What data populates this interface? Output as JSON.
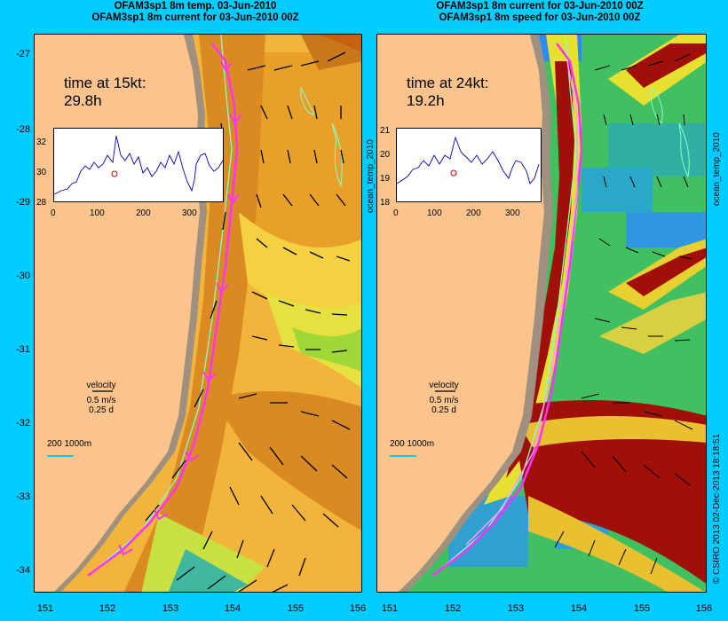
{
  "titles": {
    "left_line1": "OFAM3sp1 8m temp. 03-Jun-2010",
    "left_line2": "OFAM3sp1 8m current for 03-Jun-2010 00Z",
    "right_line1": "OFAM3sp1 8m current for 03-Jun-2010 00Z",
    "right_line2": "OFAM3sp1 8m speed for 03-Jun-2010 00Z"
  },
  "y_axis": {
    "ticks": [
      "-27",
      "-28",
      "-29",
      "-30",
      "-31",
      "-32",
      "-33",
      "-34"
    ]
  },
  "x_axis": {
    "ticks": [
      "151",
      "152",
      "153",
      "154",
      "155",
      "156"
    ]
  },
  "left_panel": {
    "time_label": "time at 15kt:",
    "time_value": "29.8h",
    "inset_y_ticks": [
      "32",
      "30",
      "28"
    ],
    "inset_x_ticks": [
      "0",
      "100",
      "200",
      "300"
    ],
    "legend_title": "velocity",
    "legend_speed": "0.5 m/s",
    "legend_time": "0.25 d",
    "scale_label": "200  1000m"
  },
  "right_panel": {
    "time_label": "time at 24kt:",
    "time_value": "19.2h",
    "inset_y_ticks": [
      "21",
      "20",
      "19",
      "18"
    ],
    "inset_x_ticks": [
      "0",
      "100",
      "200",
      "300"
    ],
    "inset_side_label": "ocean_temp_2010",
    "legend_title": "velocity",
    "legend_speed": "0.5 m/s",
    "legend_time": "0.25 d",
    "scale_label": "200  1000m",
    "side_label": "ocean_temp_2010"
  },
  "footer_credit": "© CSIRO 2013   02-Dec-2013 18:18:51",
  "colors": {
    "background": "#00ccff",
    "land": "#fbc48c",
    "track": "#ff33ff",
    "isobath": "#88ffcc",
    "scale_line": "#00ccff"
  }
}
